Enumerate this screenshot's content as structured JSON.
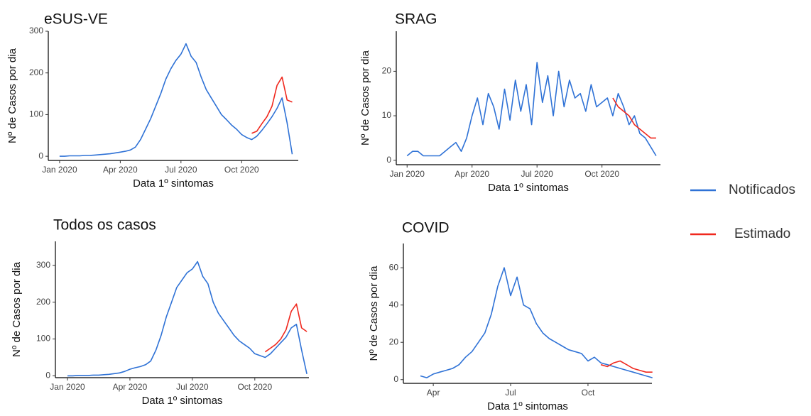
{
  "legend": [
    {
      "name": "Notificados",
      "color": "#2f72d6"
    },
    {
      "name": "Estimado",
      "color": "#f0281e"
    }
  ],
  "chart_data": [
    {
      "type": "line",
      "title": "eSUS-VE",
      "x_label": "Data 1º sintomas",
      "y_label": "Nº de Casos por dia",
      "xlim": [
        -0.56,
        11.8
      ],
      "xticks": [
        {
          "value": 0,
          "label": "Jan 2020"
        },
        {
          "value": 3,
          "label": "Apr 2020"
        },
        {
          "value": 6,
          "label": "Jul 2020"
        },
        {
          "value": 9,
          "label": "Oct 2020"
        }
      ],
      "ylim": [
        -10,
        300
      ],
      "yticks": [
        0,
        100,
        200,
        300
      ],
      "series": [
        {
          "color": "#2f72d6",
          "x": [
            0,
            0.25,
            0.5,
            0.75,
            1,
            1.25,
            1.5,
            1.75,
            2,
            2.25,
            2.5,
            2.75,
            3,
            3.25,
            3.5,
            3.75,
            4,
            4.25,
            4.5,
            4.75,
            5,
            5.25,
            5.5,
            5.75,
            6,
            6.25,
            6.5,
            6.75,
            7,
            7.25,
            7.5,
            7.75,
            8,
            8.25,
            8.5,
            8.75,
            9,
            9.25,
            9.5,
            9.75,
            10,
            10.25,
            10.5,
            10.75,
            11,
            11.25,
            11.5
          ],
          "values": [
            0,
            0,
            1,
            1,
            1,
            2,
            2,
            3,
            4,
            5,
            6,
            8,
            10,
            12,
            15,
            22,
            40,
            65,
            90,
            120,
            150,
            185,
            210,
            230,
            245,
            270,
            240,
            225,
            190,
            160,
            140,
            120,
            100,
            88,
            75,
            65,
            52,
            45,
            40,
            48,
            62,
            78,
            95,
            115,
            140,
            80,
            5
          ]
        },
        {
          "color": "#f0281e",
          "x": [
            9.5,
            9.75,
            10,
            10.25,
            10.5,
            10.75,
            11,
            11.25,
            11.5
          ],
          "values": [
            55,
            60,
            78,
            95,
            120,
            170,
            190,
            135,
            130
          ]
        }
      ]
    },
    {
      "type": "line",
      "title": "SRAG",
      "x_label": "Data 1º sintomas",
      "y_label": "Nº de Casos por dia",
      "xlim": [
        -0.5,
        11.7
      ],
      "xticks": [
        {
          "value": 0,
          "label": "Jan 2020"
        },
        {
          "value": 3,
          "label": "Apr 2020"
        },
        {
          "value": 6,
          "label": "Jul 2020"
        },
        {
          "value": 9,
          "label": "Oct 2020"
        }
      ],
      "ylim": [
        -1,
        29
      ],
      "yticks": [
        0,
        10,
        20
      ],
      "series": [
        {
          "color": "#2f72d6",
          "x": [
            0,
            0.25,
            0.5,
            0.75,
            1,
            1.25,
            1.5,
            1.75,
            2,
            2.25,
            2.5,
            2.75,
            3,
            3.25,
            3.5,
            3.75,
            4,
            4.25,
            4.5,
            4.75,
            5,
            5.25,
            5.5,
            5.75,
            6,
            6.25,
            6.5,
            6.75,
            7,
            7.25,
            7.5,
            7.75,
            8,
            8.25,
            8.5,
            8.75,
            9,
            9.25,
            9.5,
            9.75,
            10,
            10.25,
            10.5,
            10.75,
            11,
            11.25,
            11.5
          ],
          "values": [
            1,
            2,
            2,
            1,
            1,
            1,
            1,
            2,
            3,
            4,
            2,
            5,
            10,
            14,
            8,
            15,
            12,
            7,
            16,
            9,
            18,
            11,
            17,
            8,
            22,
            13,
            19,
            10,
            20,
            12,
            18,
            14,
            15,
            11,
            17,
            12,
            13,
            14,
            10,
            15,
            12,
            8,
            10,
            6,
            5,
            3,
            1
          ]
        },
        {
          "color": "#f0281e",
          "x": [
            9.5,
            9.75,
            10,
            10.25,
            10.5,
            10.75,
            11,
            11.25,
            11.5
          ],
          "values": [
            14,
            12,
            11,
            10,
            8,
            7,
            6,
            5,
            5
          ]
        }
      ]
    },
    {
      "type": "line",
      "title": "Todos os casos",
      "x_label": "Data 1º sintomas",
      "y_label": "Nº de Casos por dia",
      "xlim": [
        -0.58,
        11.6
      ],
      "xticks": [
        {
          "value": 0,
          "label": "Jan 2020"
        },
        {
          "value": 3,
          "label": "Apr 2020"
        },
        {
          "value": 6,
          "label": "Jul 2020"
        },
        {
          "value": 9,
          "label": "Oct 2020"
        }
      ],
      "ylim": [
        -5,
        365
      ],
      "yticks": [
        0,
        100,
        200,
        300
      ],
      "series": [
        {
          "color": "#2f72d6",
          "x": [
            0,
            0.25,
            0.5,
            0.75,
            1,
            1.25,
            1.5,
            1.75,
            2,
            2.25,
            2.5,
            2.75,
            3,
            3.25,
            3.5,
            3.75,
            4,
            4.25,
            4.5,
            4.75,
            5,
            5.25,
            5.5,
            5.75,
            6,
            6.25,
            6.5,
            6.75,
            7,
            7.25,
            7.5,
            7.75,
            8,
            8.25,
            8.5,
            8.75,
            9,
            9.25,
            9.5,
            9.75,
            10,
            10.25,
            10.5,
            10.75,
            11,
            11.25,
            11.5
          ],
          "values": [
            0,
            0,
            1,
            1,
            1,
            2,
            2,
            3,
            4,
            6,
            8,
            12,
            18,
            22,
            25,
            30,
            40,
            70,
            110,
            160,
            200,
            240,
            260,
            280,
            290,
            310,
            270,
            250,
            200,
            170,
            150,
            130,
            110,
            95,
            85,
            75,
            60,
            55,
            50,
            60,
            75,
            90,
            105,
            130,
            140,
            70,
            5
          ]
        },
        {
          "color": "#f0281e",
          "x": [
            9.5,
            9.75,
            10,
            10.25,
            10.5,
            10.75,
            11,
            11.25,
            11.5
          ],
          "values": [
            65,
            75,
            85,
            100,
            125,
            175,
            195,
            130,
            120
          ]
        }
      ]
    },
    {
      "type": "line",
      "title": "COVID",
      "x_label": "Data 1º sintomas",
      "y_label": "Nº de Casos por dia",
      "xlim": [
        1.84,
        11.48
      ],
      "xticks": [
        {
          "value": 3,
          "label": "Apr"
        },
        {
          "value": 6,
          "label": "Jul"
        },
        {
          "value": 9,
          "label": "Oct"
        }
      ],
      "ylim": [
        -2,
        73
      ],
      "yticks": [
        0,
        20,
        40,
        60
      ],
      "series": [
        {
          "color": "#2f72d6",
          "x": [
            2.5,
            2.75,
            3,
            3.25,
            3.5,
            3.75,
            4,
            4.25,
            4.5,
            4.75,
            5,
            5.25,
            5.5,
            5.75,
            6,
            6.25,
            6.5,
            6.75,
            7,
            7.25,
            7.5,
            7.75,
            8,
            8.25,
            8.5,
            8.75,
            9,
            9.25,
            9.5,
            9.75,
            10,
            10.25,
            10.5,
            10.75,
            11,
            11.25,
            11.5
          ],
          "values": [
            2,
            1,
            3,
            4,
            5,
            6,
            8,
            12,
            15,
            20,
            25,
            35,
            50,
            60,
            45,
            55,
            40,
            38,
            30,
            25,
            22,
            20,
            18,
            16,
            15,
            14,
            10,
            12,
            9,
            8,
            7,
            6,
            5,
            4,
            3,
            2,
            1
          ]
        },
        {
          "color": "#f0281e",
          "x": [
            9.5,
            9.75,
            10,
            10.25,
            10.5,
            10.75,
            11,
            11.25,
            11.5
          ],
          "values": [
            8,
            7,
            9,
            10,
            8,
            6,
            5,
            4,
            4
          ]
        }
      ]
    }
  ]
}
